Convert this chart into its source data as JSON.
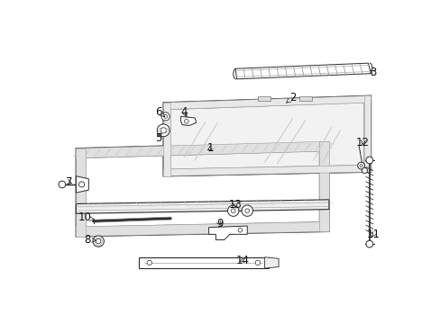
{
  "background_color": "#ffffff",
  "figsize": [
    4.89,
    3.6
  ],
  "dpi": 100,
  "line_color": "#2a2a2a",
  "gray_light": "#cccccc",
  "gray_mid": "#999999",
  "gray_dark": "#555555"
}
